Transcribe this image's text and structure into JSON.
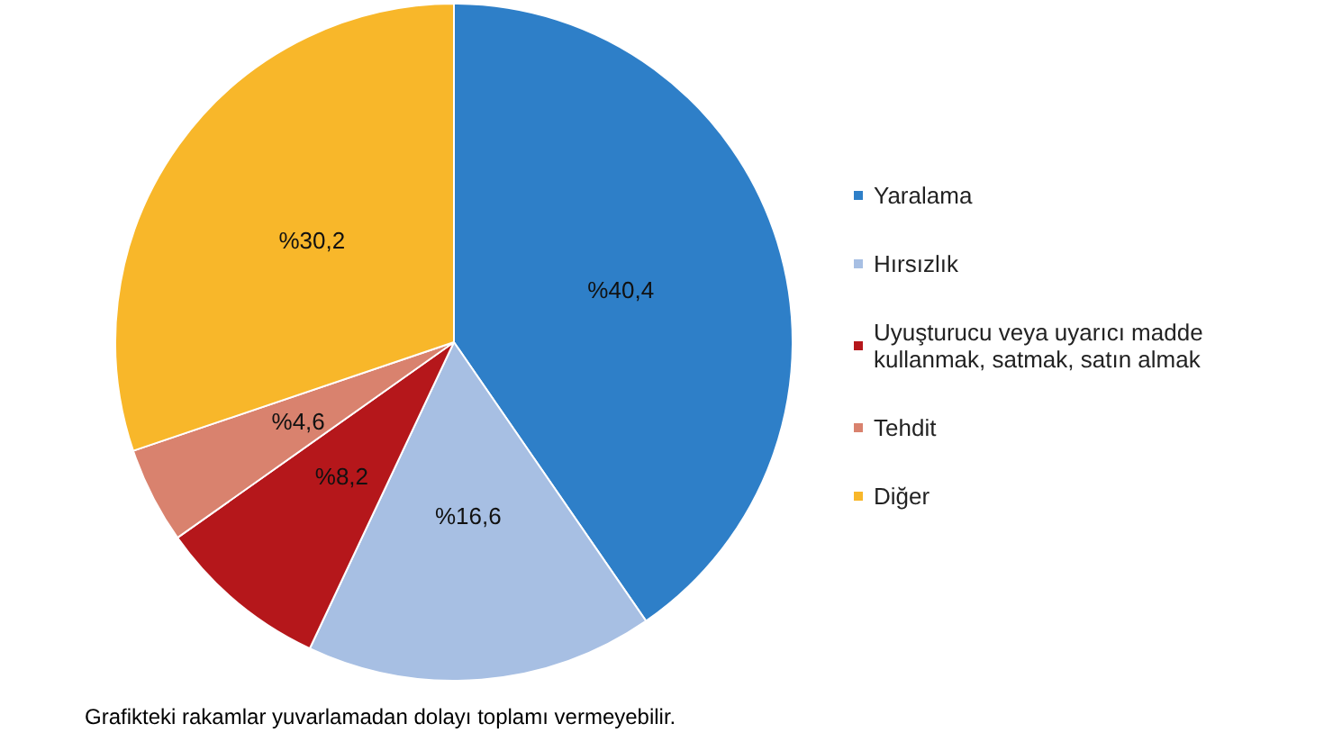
{
  "chart_data": {
    "type": "pie",
    "categories": [
      "Yaralama",
      "Hırsızlık",
      "Uyuşturucu veya uyarıcı madde kullanmak, satmak, satın almak",
      "Tehdit",
      "Diğer"
    ],
    "values": [
      40.4,
      16.6,
      8.2,
      4.6,
      30.2
    ],
    "colors": [
      "#2e7fc8",
      "#a7bfe3",
      "#b5171b",
      "#d9826e",
      "#f8b72a"
    ],
    "value_labels": [
      "%40,4",
      "%16,6",
      "%8,2",
      "%4,6",
      "%30,2"
    ],
    "legend": "right",
    "annotations": [
      "Grafikteki rakamlar yuvarlamadan dolayı toplamı vermeyebilir."
    ]
  }
}
